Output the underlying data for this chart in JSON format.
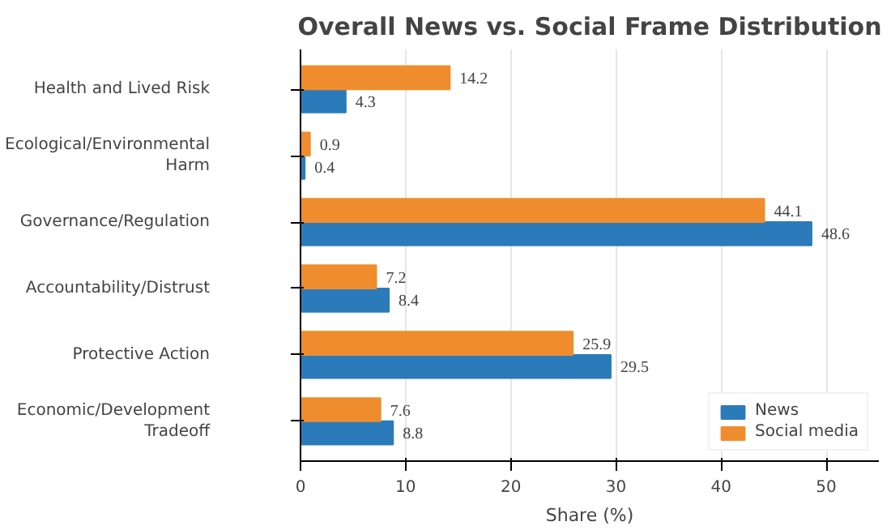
{
  "chart_data": {
    "type": "bar",
    "orientation": "horizontal",
    "title": "Overall News vs. Social Frame Distribution",
    "xlabel": "Share (%)",
    "categories": [
      "Health and Lived Risk",
      "Ecological/Environmental\nHarm",
      "Governance/Regulation",
      "Accountability/Distrust",
      "Protective Action",
      "Economic/Development\nTradeoff"
    ],
    "series": [
      {
        "name": "News",
        "color": "#2b7bba",
        "values": [
          4.3,
          0.4,
          48.6,
          8.4,
          29.5,
          8.8
        ]
      },
      {
        "name": "Social media",
        "color": "#ef8d2e",
        "values": [
          14.2,
          0.9,
          44.1,
          7.2,
          25.9,
          7.6
        ]
      }
    ],
    "xlim": [
      0,
      55
    ],
    "xticks": [
      0,
      10,
      20,
      30,
      40,
      50
    ],
    "grid": "x",
    "legend": "bottom right",
    "data_labels": true
  }
}
